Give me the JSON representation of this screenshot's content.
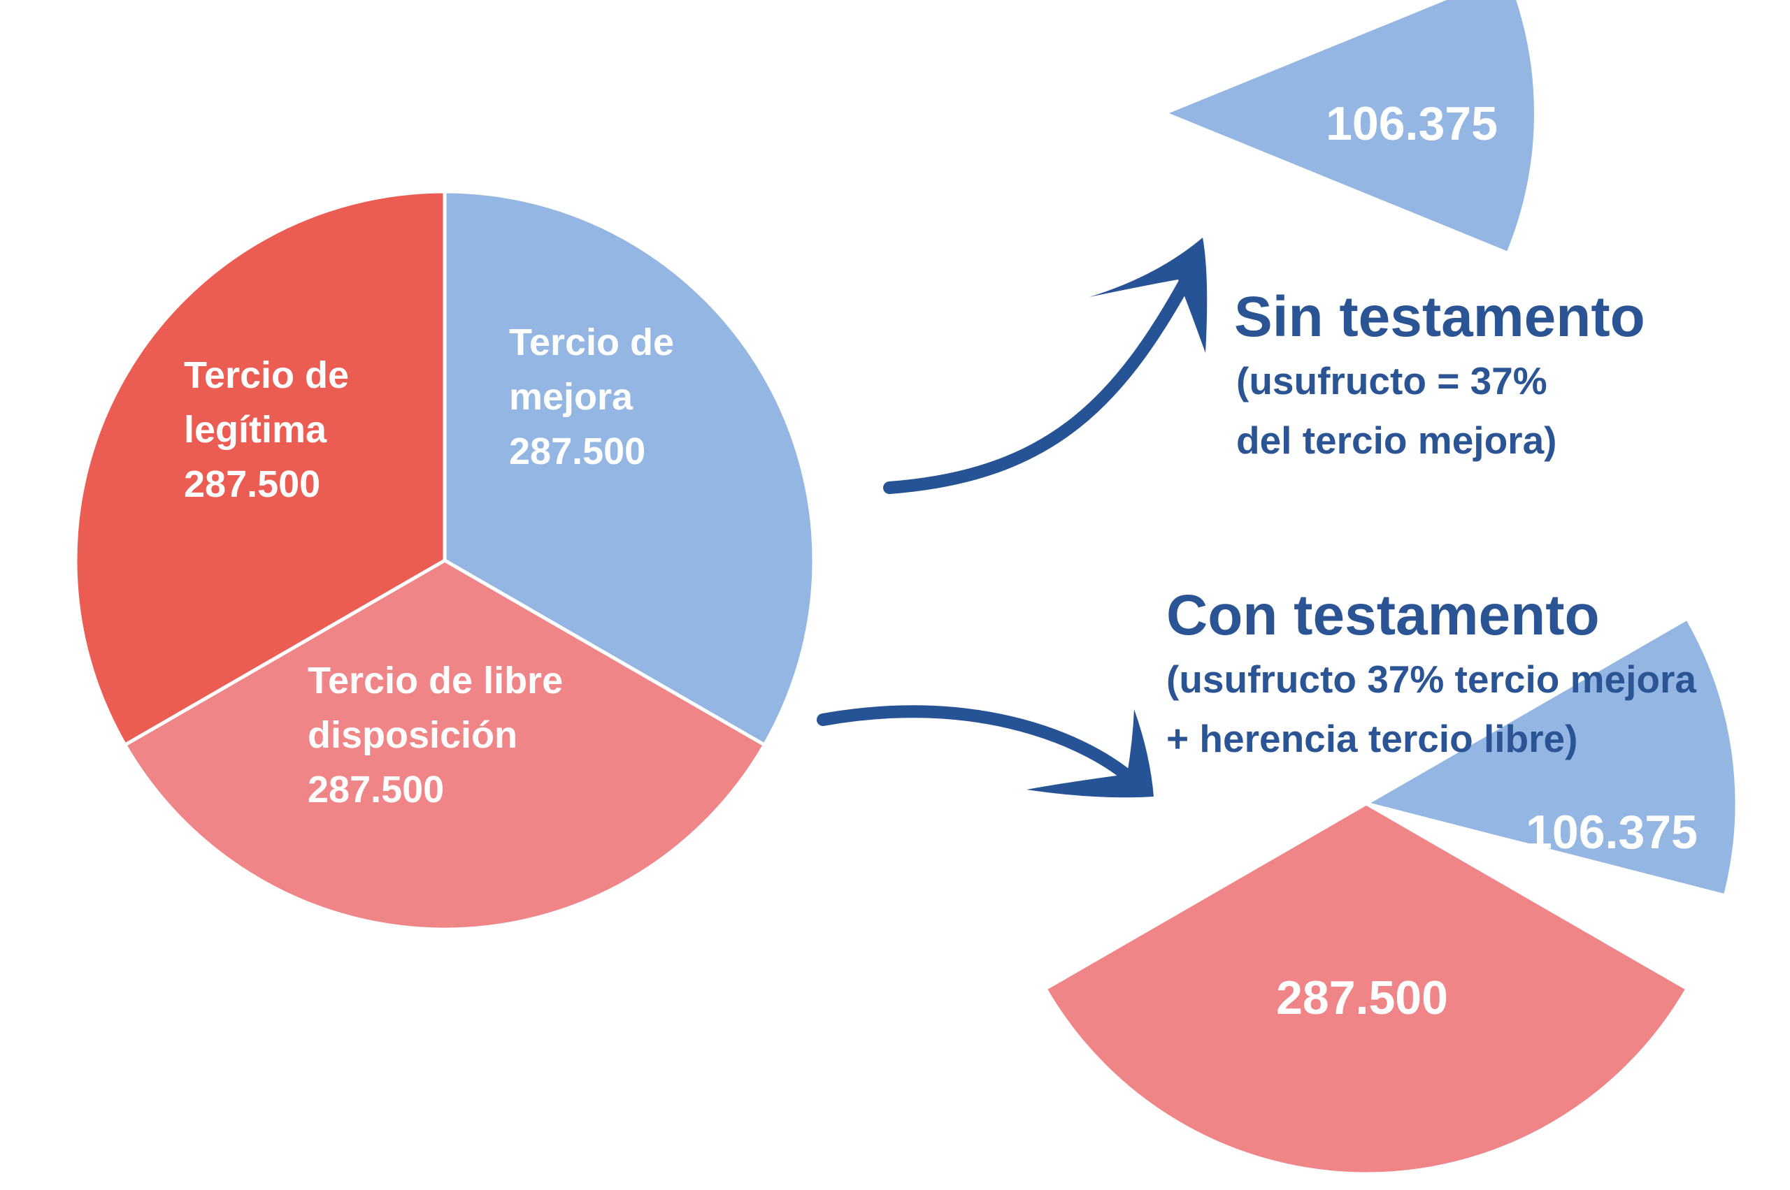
{
  "colors": {
    "legitima": "#eb5c53",
    "mejora": "#93b6e2",
    "libre": "#f08587",
    "arrow": "#265395",
    "heading": "#2a5494",
    "label": "#ffffff"
  },
  "chart_data": [
    {
      "type": "pie",
      "id": "total",
      "title": "",
      "slices": [
        {
          "key": "mejora",
          "label": [
            "Tercio de",
            "mejora"
          ],
          "value": 287500,
          "value_label": "287.500",
          "color": "#93b6e2"
        },
        {
          "key": "libre",
          "label": [
            "Tercio de libre",
            "disposición"
          ],
          "value": 287500,
          "value_label": "287.500",
          "color": "#f08587"
        },
        {
          "key": "legitima",
          "label": [
            "Tercio de",
            "legítima"
          ],
          "value": 287500,
          "value_label": "287.500",
          "color": "#eb5c53"
        }
      ]
    },
    {
      "type": "pie",
      "id": "sin-testamento",
      "title": "Sin testamento",
      "subtitle": [
        "(usufructo = 37%",
        "del tercio mejora)"
      ],
      "slices": [
        {
          "key": "mejora-usufructo",
          "value": 106375,
          "value_label": "106.375",
          "color": "#93b6e2"
        }
      ]
    },
    {
      "type": "pie",
      "id": "con-testamento",
      "title": "Con testamento",
      "subtitle": [
        "(usufructo 37% tercio mejora",
        "+ herencia tercio libre)"
      ],
      "slices": [
        {
          "key": "mejora-usufructo",
          "value": 106375,
          "value_label": "106.375",
          "color": "#93b6e2"
        },
        {
          "key": "libre",
          "value": 287500,
          "value_label": "287.500",
          "color": "#f08587"
        }
      ]
    }
  ]
}
